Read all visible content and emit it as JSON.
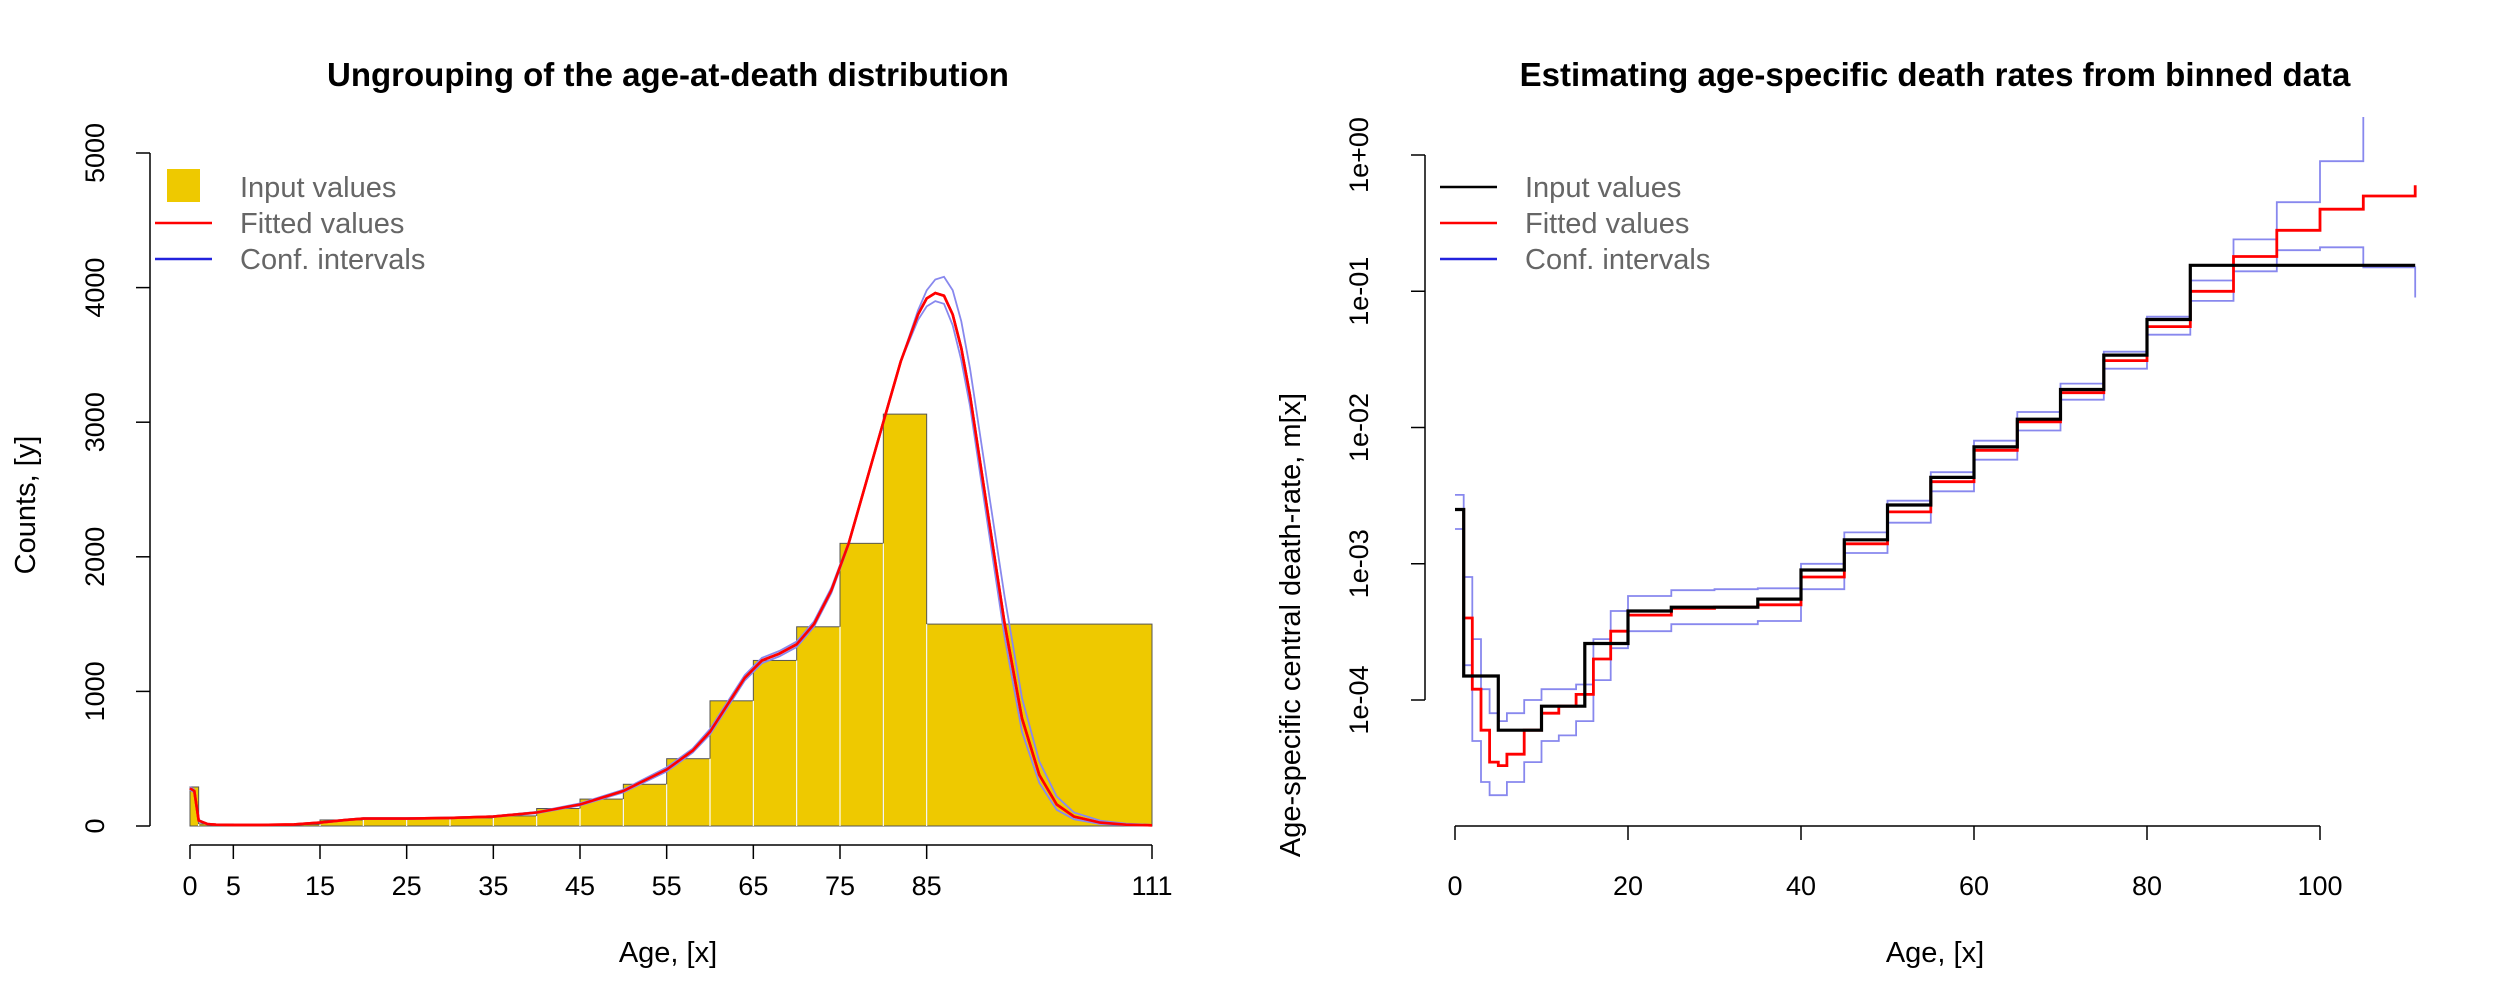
{
  "colors": {
    "bar_fill": "#EEC900",
    "bar_edge": "#555555",
    "fitted": "#FF0000",
    "ci": "#2222DD",
    "ci_light": "#8888EE",
    "input_line": "#000000",
    "legend_text": "#666666"
  },
  "chart_data": [
    {
      "type": "bar",
      "title": "Ungrouping of the age-at-death distribution",
      "xlabel": "Age, [x]",
      "ylabel": "Counts, [y]",
      "xlim": [
        0,
        111
      ],
      "ylim": [
        0,
        5000
      ],
      "x_ticks": [
        0,
        5,
        15,
        25,
        35,
        45,
        55,
        65,
        75,
        85,
        111
      ],
      "x_tick_labels": [
        "0",
        "5",
        "15",
        "25",
        "35",
        "45",
        "55",
        "65",
        "75",
        "85",
        "111"
      ],
      "y_ticks": [
        0,
        1000,
        2000,
        3000,
        4000,
        5000
      ],
      "y_tick_labels": [
        "0",
        "1000",
        "2000",
        "3000",
        "4000",
        "5000"
      ],
      "legend": {
        "position": "top-left",
        "entries": [
          {
            "label": "Input values",
            "symbol": "square"
          },
          {
            "label": "Fitted values",
            "symbol": "line"
          },
          {
            "label": "Conf. intervals",
            "symbol": "line"
          }
        ]
      },
      "bins": [
        {
          "from": 0,
          "to": 1,
          "value": 290
        },
        {
          "from": 1,
          "to": 5,
          "value": 15
        },
        {
          "from": 5,
          "to": 10,
          "value": 10
        },
        {
          "from": 10,
          "to": 15,
          "value": 12
        },
        {
          "from": 15,
          "to": 20,
          "value": 45
        },
        {
          "from": 20,
          "to": 25,
          "value": 60
        },
        {
          "from": 25,
          "to": 30,
          "value": 60
        },
        {
          "from": 30,
          "to": 35,
          "value": 60
        },
        {
          "from": 35,
          "to": 40,
          "value": 75
        },
        {
          "from": 40,
          "to": 45,
          "value": 130
        },
        {
          "from": 45,
          "to": 50,
          "value": 200
        },
        {
          "from": 50,
          "to": 55,
          "value": 310
        },
        {
          "from": 55,
          "to": 60,
          "value": 500
        },
        {
          "from": 60,
          "to": 65,
          "value": 930
        },
        {
          "from": 65,
          "to": 70,
          "value": 1230
        },
        {
          "from": 70,
          "to": 75,
          "value": 1480
        },
        {
          "from": 75,
          "to": 80,
          "value": 2100
        },
        {
          "from": 80,
          "to": 85,
          "value": 3060
        },
        {
          "from": 85,
          "to": 111,
          "value": 1500
        }
      ],
      "series": [
        {
          "role": "fitted",
          "x": [
            0,
            0.5,
            1,
            2,
            3,
            5,
            8,
            12,
            15,
            18,
            20,
            22,
            25,
            30,
            35,
            40,
            45,
            50,
            55,
            58,
            60,
            62,
            64,
            66,
            68,
            70,
            72,
            74,
            76,
            78,
            80,
            82,
            84,
            85,
            86,
            87,
            88,
            89,
            90,
            92,
            94,
            96,
            98,
            100,
            102,
            105,
            108,
            111
          ],
          "y": [
            280,
            260,
            40,
            15,
            10,
            8,
            8,
            12,
            25,
            45,
            55,
            55,
            55,
            60,
            70,
            100,
            160,
            260,
            420,
            560,
            700,
            900,
            1100,
            1230,
            1280,
            1350,
            1500,
            1750,
            2100,
            2550,
            3000,
            3450,
            3800,
            3920,
            3960,
            3940,
            3800,
            3550,
            3200,
            2350,
            1500,
            800,
            380,
            160,
            70,
            25,
            10,
            5
          ]
        },
        {
          "role": "ci_upper",
          "x": [
            0,
            0.5,
            1,
            2,
            3,
            5,
            8,
            12,
            15,
            18,
            20,
            22,
            25,
            30,
            35,
            40,
            45,
            50,
            55,
            58,
            60,
            62,
            64,
            66,
            68,
            70,
            72,
            74,
            76,
            78,
            80,
            82,
            84,
            85,
            86,
            87,
            88,
            89,
            90,
            92,
            94,
            96,
            98,
            100,
            102,
            105,
            108,
            111
          ],
          "y": [
            290,
            270,
            45,
            17,
            11,
            9,
            9,
            13,
            27,
            48,
            58,
            58,
            58,
            63,
            73,
            105,
            168,
            270,
            435,
            575,
            720,
            920,
            1120,
            1250,
            1300,
            1370,
            1520,
            1770,
            2110,
            2550,
            2990,
            3450,
            3830,
            3980,
            4060,
            4080,
            3980,
            3750,
            3400,
            2550,
            1700,
            950,
            480,
            220,
            100,
            40,
            18,
            8
          ]
        },
        {
          "role": "ci_lower",
          "x": [
            0,
            0.5,
            1,
            2,
            3,
            5,
            8,
            12,
            15,
            18,
            20,
            22,
            25,
            30,
            35,
            40,
            45,
            50,
            55,
            58,
            60,
            62,
            64,
            66,
            68,
            70,
            72,
            74,
            76,
            78,
            80,
            82,
            84,
            85,
            86,
            87,
            88,
            89,
            90,
            92,
            94,
            96,
            98,
            100,
            102,
            105,
            108,
            111
          ],
          "y": [
            270,
            250,
            35,
            13,
            9,
            7,
            7,
            11,
            23,
            42,
            52,
            52,
            52,
            57,
            67,
            95,
            152,
            250,
            405,
            545,
            680,
            880,
            1080,
            1210,
            1260,
            1330,
            1480,
            1730,
            2090,
            2550,
            3010,
            3450,
            3760,
            3860,
            3900,
            3880,
            3720,
            3460,
            3120,
            2260,
            1400,
            700,
            320,
            120,
            50,
            15,
            6,
            3
          ]
        }
      ]
    },
    {
      "type": "line",
      "title": "Estimating age-specific death rates from binned data",
      "xlabel": "Age, [x]",
      "ylabel": "Age-specific central death-rate, m[x]",
      "y_scale": "log",
      "xlim": [
        0,
        100
      ],
      "ylim": [
        1e-05,
        1
      ],
      "x_ticks": [
        0,
        20,
        40,
        60,
        80,
        100
      ],
      "x_tick_labels": [
        "0",
        "20",
        "40",
        "60",
        "80",
        "100"
      ],
      "y_ticks": [
        0.0001,
        0.001,
        0.01,
        0.1,
        1
      ],
      "y_tick_labels": [
        "1e-04",
        "1e-03",
        "1e-02",
        "1e-01",
        "1e+00"
      ],
      "legend": {
        "position": "top-left",
        "entries": [
          {
            "label": "Input values",
            "symbol": "line"
          },
          {
            "label": "Fitted values",
            "symbol": "line"
          },
          {
            "label": "Conf. intervals",
            "symbol": "line"
          }
        ]
      },
      "input_steps": [
        {
          "from": 0,
          "to": 1,
          "value": 0.0025
        },
        {
          "from": 1,
          "to": 5,
          "value": 0.00015
        },
        {
          "from": 5,
          "to": 10,
          "value": 6e-05
        },
        {
          "from": 10,
          "to": 15,
          "value": 9e-05
        },
        {
          "from": 15,
          "to": 20,
          "value": 0.00026
        },
        {
          "from": 20,
          "to": 25,
          "value": 0.00045
        },
        {
          "from": 25,
          "to": 30,
          "value": 0.00048
        },
        {
          "from": 30,
          "to": 35,
          "value": 0.00048
        },
        {
          "from": 35,
          "to": 40,
          "value": 0.00055
        },
        {
          "from": 40,
          "to": 45,
          "value": 0.0009
        },
        {
          "from": 45,
          "to": 50,
          "value": 0.0015
        },
        {
          "from": 50,
          "to": 55,
          "value": 0.0027
        },
        {
          "from": 55,
          "to": 60,
          "value": 0.0043
        },
        {
          "from": 60,
          "to": 65,
          "value": 0.0072
        },
        {
          "from": 65,
          "to": 70,
          "value": 0.0115
        },
        {
          "from": 70,
          "to": 75,
          "value": 0.019
        },
        {
          "from": 75,
          "to": 80,
          "value": 0.034
        },
        {
          "from": 80,
          "to": 85,
          "value": 0.062
        },
        {
          "from": 85,
          "to": 111,
          "value": 0.155
        }
      ],
      "series": [
        {
          "role": "fitted",
          "x": [
            0,
            1,
            2,
            3,
            4,
            5,
            6,
            8,
            10,
            12,
            14,
            16,
            18,
            20,
            25,
            30,
            35,
            40,
            45,
            50,
            55,
            60,
            65,
            70,
            75,
            80,
            85,
            90,
            95,
            100,
            105,
            111
          ],
          "y": [
            0.0025,
            0.0004,
            0.00012,
            6e-05,
            3.5e-05,
            3.3e-05,
            4e-05,
            6e-05,
            8e-05,
            9e-05,
            0.00011,
            0.0002,
            0.00032,
            0.00042,
            0.00047,
            0.00048,
            0.0005,
            0.0008,
            0.0014,
            0.0024,
            0.004,
            0.0068,
            0.011,
            0.018,
            0.031,
            0.055,
            0.1,
            0.18,
            0.28,
            0.4,
            0.5,
            0.6
          ]
        },
        {
          "role": "ci_upper",
          "x": [
            0,
            1,
            2,
            3,
            4,
            5,
            6,
            8,
            10,
            12,
            14,
            16,
            18,
            20,
            25,
            30,
            35,
            40,
            45,
            50,
            55,
            60,
            65,
            70,
            75,
            80,
            85,
            90,
            95,
            100,
            105
          ],
          "y": [
            0.0032,
            0.0008,
            0.00028,
            0.00012,
            8e-05,
            7e-05,
            8e-05,
            0.0001,
            0.00012,
            0.00012,
            0.00013,
            0.00028,
            0.00045,
            0.00058,
            0.00064,
            0.00065,
            0.00066,
            0.001,
            0.0017,
            0.0029,
            0.0047,
            0.008,
            0.013,
            0.021,
            0.036,
            0.065,
            0.12,
            0.24,
            0.45,
            0.9,
            1.9
          ]
        },
        {
          "role": "ci_lower",
          "x": [
            0,
            1,
            2,
            3,
            4,
            5,
            6,
            8,
            10,
            12,
            14,
            16,
            18,
            20,
            25,
            30,
            35,
            40,
            45,
            50,
            55,
            60,
            65,
            70,
            75,
            80,
            85,
            90,
            95,
            100,
            105,
            111
          ],
          "y": [
            0.0018,
            0.00018,
            5e-05,
            2.5e-05,
            2e-05,
            2e-05,
            2.5e-05,
            3.5e-05,
            5e-05,
            5.5e-05,
            7e-05,
            0.00014,
            0.00024,
            0.00032,
            0.00036,
            0.00036,
            0.00038,
            0.00065,
            0.0012,
            0.002,
            0.0034,
            0.0058,
            0.0095,
            0.016,
            0.027,
            0.048,
            0.085,
            0.14,
            0.2,
            0.21,
            0.15,
            0.09
          ]
        }
      ]
    }
  ]
}
